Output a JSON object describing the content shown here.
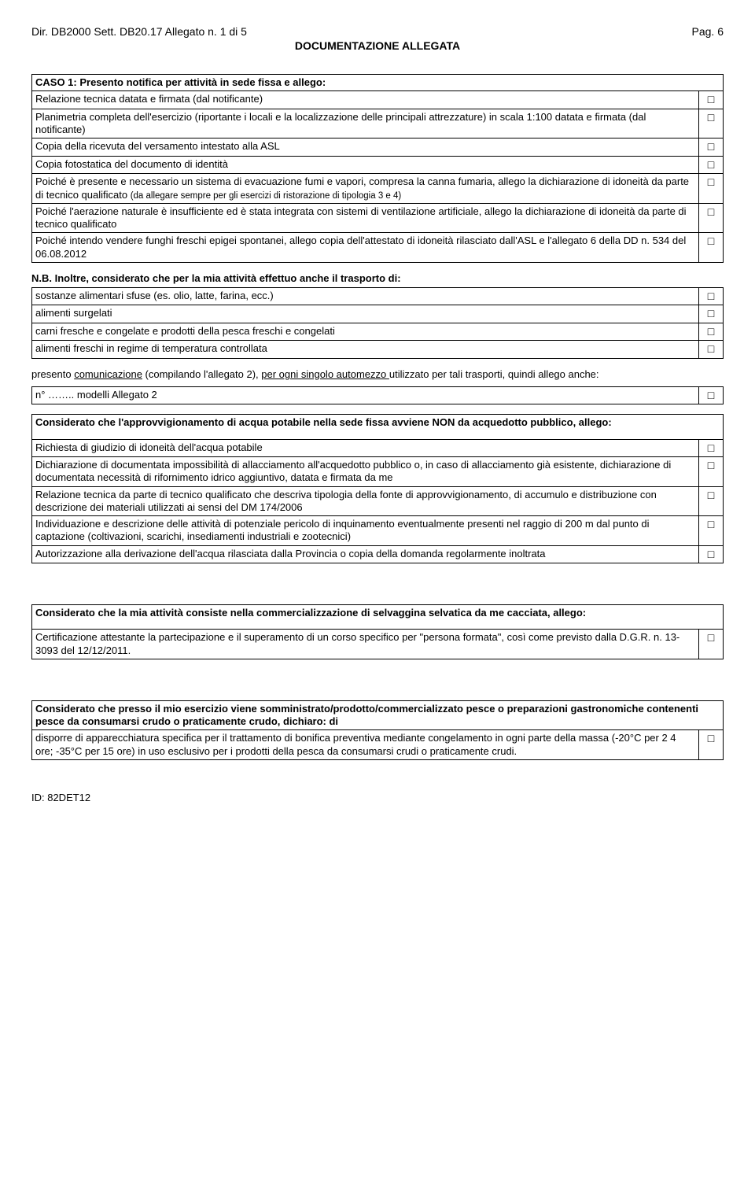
{
  "header": {
    "left": "Dir. DB2000   Sett. DB20.17     Allegato n. 1 di 5",
    "right": "Pag. 6",
    "center": "DOCUMENTAZIONE  ALLEGATA"
  },
  "caso1": {
    "title": "CASO 1: Presento notifica per attività in sede fissa e allego:",
    "rows": [
      "Relazione tecnica datata e firmata (dal notificante)",
      "Planimetria completa dell'esercizio (riportante i locali e la localizzazione delle principali attrezzature) in scala 1:100 datata e firmata (dal notificante)",
      "Copia della ricevuta del versamento intestato alla ASL",
      "Copia fotostatica del documento di identità",
      "Poiché è presente e necessario un sistema di evacuazione fumi e vapori, compresa la canna fumaria, allego la dichiarazione di idoneità da parte di tecnico qualificato <span class=\"small\">(da allegare sempre per gli esercizi di ristorazione di tipologia 3 e 4)</span>",
      "Poiché l'aerazione naturale è insufficiente ed è stata integrata con sistemi di ventilazione artificiale, allego la dichiarazione di idoneità da parte di tecnico qualificato",
      "Poiché intendo vendere funghi freschi epigei spontanei, allego copia dell'attestato di idoneità rilasciato dall'ASL e l'allegato 6 della DD n. 534 del 06.08.2012"
    ]
  },
  "nb": {
    "line": "N.B. Inoltre, considerato che per la mia attività effettuo anche il  trasporto di",
    "rows": [
      "sostanze alimentari sfuse (es. olio, latte, farina, ecc.)",
      "alimenti surgelati",
      "carni fresche e congelate e prodotti della pesca freschi e congelati",
      "alimenti freschi in regime di temperatura controllata"
    ]
  },
  "comunicazione": {
    "text_pre": "presento ",
    "underline1": "comunicazione",
    "text_mid": " (compilando l'allegato 2), ",
    "underline2": "per ogni singolo automezzo ",
    "text_post": "utilizzato per tali trasporti, quindi allego anche:",
    "row": "n° …….. modelli Allegato 2"
  },
  "acqua": {
    "title": "Considerato che l'approvvigionamento di acqua potabile nella sede fissa avviene NON da acquedotto pubblico, allego:",
    "rows": [
      "Richiesta di giudizio di idoneità dell'acqua potabile",
      "Dichiarazione di documentata impossibilità di allacciamento all'acquedotto pubblico o, in caso di allacciamento già esistente, dichiarazione di documentata necessità di rifornimento idrico aggiuntivo, datata e firmata da me",
      "Relazione tecnica da parte di tecnico qualificato che descriva tipologia della fonte di approvvigionamento, di accumulo e distribuzione con descrizione dei materiali utilizzati ai sensi del DM 174/2006",
      "Individuazione e descrizione delle attività di potenziale pericolo di inquinamento eventualmente presenti nel raggio di 200 m dal punto di captazione (coltivazioni, scarichi, insediamenti industriali e zootecnici)",
      "Autorizzazione alla derivazione dell'acqua rilasciata dalla Provincia o copia della domanda regolarmente inoltrata"
    ]
  },
  "selvaggina": {
    "title": "Considerato che la mia attività consiste nella commercializzazione di selvaggina selvatica da me cacciata, allego:",
    "row": "Certificazione attestante la partecipazione e il superamento di un corso specifico per \"persona formata\", così come previsto dalla D.G.R. n. 13-3093 del 12/12/2011."
  },
  "pesce": {
    "title": "Considerato che presso il mio esercizio viene somministrato/prodotto/commercializzato pesce o preparazioni gastronomiche contenenti pesce da consumarsi crudo o praticamente crudo, dichiaro: di",
    "row": "disporre di apparecchiatura specifica per il trattamento di bonifica preventiva mediante congelamento in ogni parte della massa (-20°C per 2 4 ore; -35°C per 15 ore) in uso esclusivo per i prodotti della pesca da consumarsi crudi o praticamente crudi."
  },
  "footer": "ID: 82DET12",
  "checkbox": "□"
}
